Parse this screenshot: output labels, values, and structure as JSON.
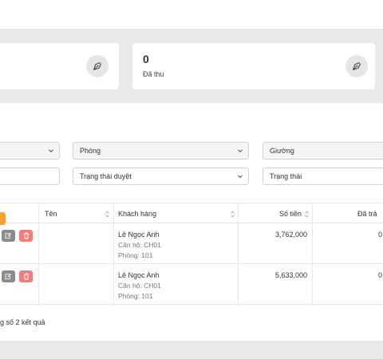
{
  "cards": [
    {
      "value": "",
      "label": "",
      "icon": "pencil-nib-icon"
    },
    {
      "value": "0",
      "label": "Đã thu",
      "icon": "pencil-nib-icon"
    }
  ],
  "filters": {
    "row1": [
      {
        "value": "",
        "type": "select"
      },
      {
        "value": "Phòng",
        "type": "select"
      },
      {
        "value": "Giường",
        "type": "select"
      }
    ],
    "row2": [
      {
        "value": "",
        "type": "input"
      },
      {
        "value": "Trạng thái duyệt",
        "type": "select"
      },
      {
        "value": "Trạng thái",
        "type": "input"
      }
    ]
  },
  "table": {
    "headers": [
      "Tên",
      "Khách hàng",
      "Số tiền",
      "Đã trả"
    ],
    "rows": [
      {
        "name": "",
        "customer": "Lê Ngọc Anh",
        "apartment": "Căn hộ: CH01",
        "room": "Phòng: 101",
        "amount": "3,762,000",
        "paid": "0"
      },
      {
        "name": "",
        "customer": "Lê Ngọc Anh",
        "apartment": "Căn hộ: CH01",
        "room": "Phòng: 101",
        "amount": "5,633,000",
        "paid": "0"
      }
    ]
  },
  "footer": {
    "summary": "g số 2 kết quả"
  },
  "colors": {
    "edit": "#8c8c8c",
    "delete": "#ee7f7f",
    "accent": "#f7a234"
  }
}
